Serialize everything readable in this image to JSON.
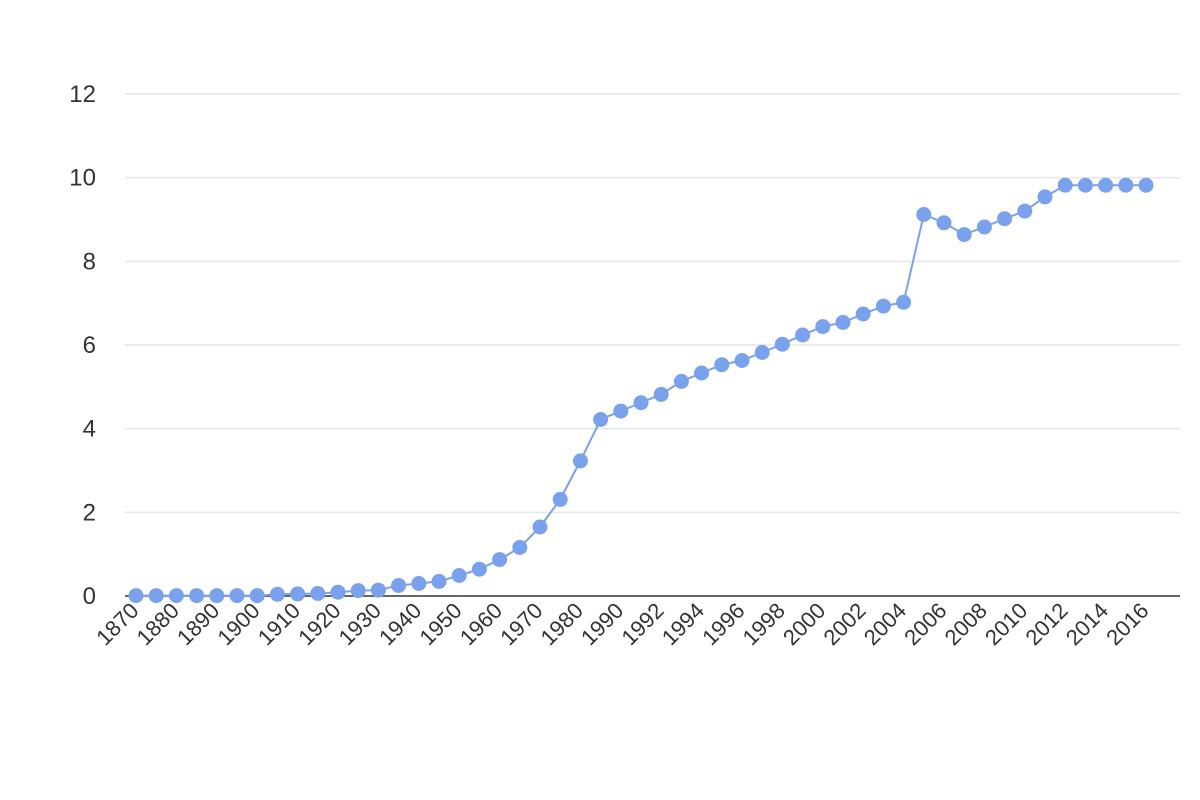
{
  "chart_data": {
    "type": "line",
    "title": "",
    "xlabel": "",
    "ylabel": "",
    "ylim": [
      0,
      12
    ],
    "y_ticks": [
      0,
      2,
      4,
      6,
      8,
      10,
      12
    ],
    "grid": true,
    "legend": "none",
    "line_color": "#7aa1ec",
    "marker_color": "#7aa1ec",
    "x_tick_labels": [
      "1870",
      "1880",
      "1890",
      "1900",
      "1910",
      "1920",
      "1930",
      "1940",
      "1950",
      "1960",
      "1970",
      "1980",
      "1990",
      "1992",
      "1994",
      "1996",
      "1998",
      "2000",
      "2002",
      "2004",
      "2006",
      "2008",
      "2010",
      "2012",
      "2014",
      "2016"
    ],
    "series": [
      {
        "values": [
          0.01,
          0.01,
          0.01,
          0.01,
          0.01,
          0.01,
          0.01,
          0.04,
          0.05,
          0.06,
          0.09,
          0.13,
          0.14,
          0.25,
          0.3,
          0.35,
          0.49,
          0.64,
          0.87,
          1.16,
          1.65,
          2.31,
          3.23,
          4.22,
          4.42,
          4.62,
          4.82,
          5.13,
          5.33,
          5.53,
          5.63,
          5.82,
          6.02,
          6.24,
          6.44,
          6.54,
          6.74,
          6.93,
          7.02,
          9.12,
          8.92,
          8.64,
          8.82,
          9.02,
          9.2,
          9.54,
          9.82,
          9.82,
          9.82,
          9.82,
          9.82
        ]
      }
    ]
  }
}
